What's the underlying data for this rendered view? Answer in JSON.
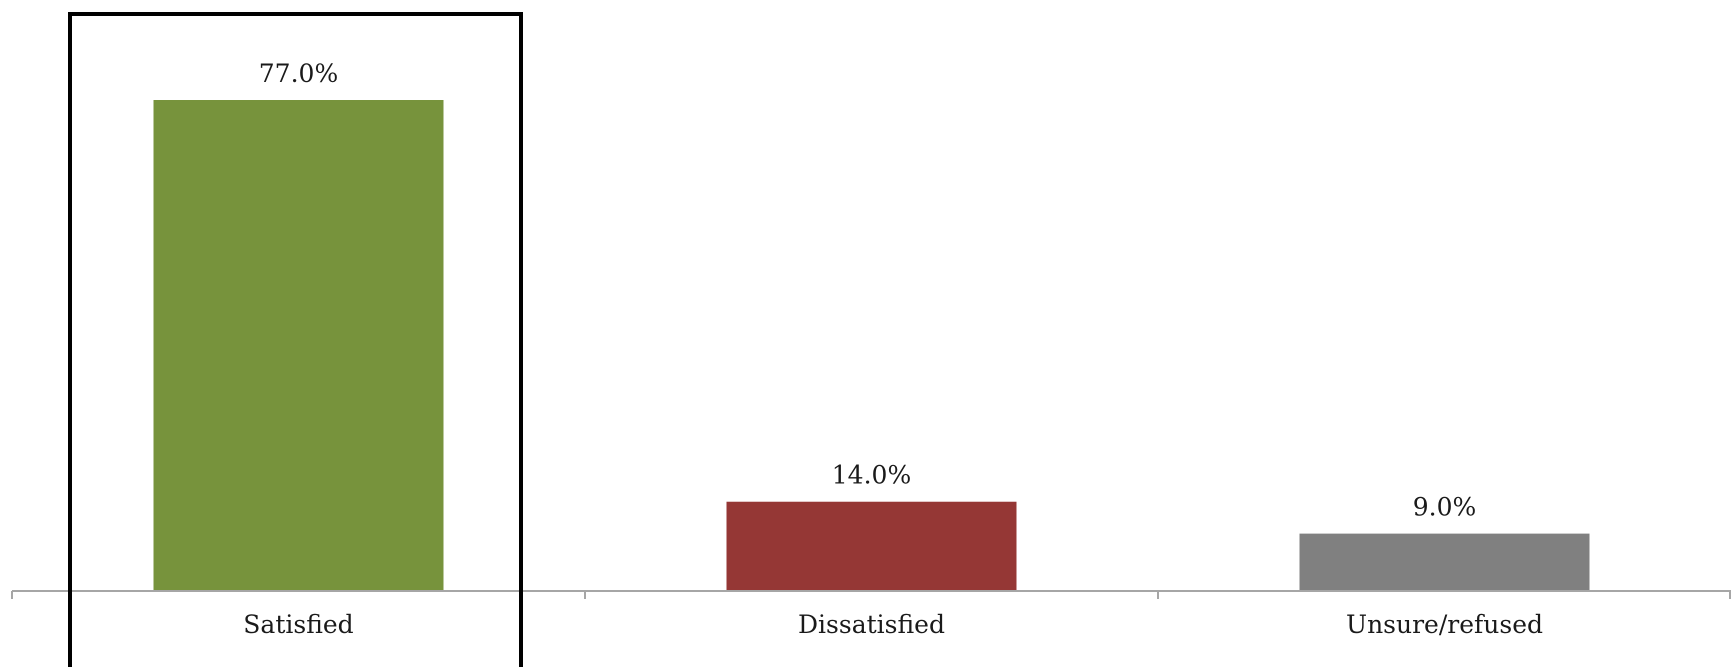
{
  "chart_data": {
    "type": "bar",
    "categories": [
      "Satisfied",
      "Dissatisfied",
      "Unsure/refused"
    ],
    "values": [
      77.0,
      14.0,
      9.0
    ],
    "data_labels": [
      "77.0%",
      "14.0%",
      "9.0%"
    ],
    "bar_colors": [
      "#77933c",
      "#953735",
      "#808080"
    ],
    "ylim": [
      0,
      100
    ],
    "highlighted_category": "Satisfied",
    "highlight_color": "#000000",
    "axis_color": "#a6a6a6",
    "grid": false,
    "legend": "none",
    "title": "",
    "xlabel": "",
    "ylabel": ""
  }
}
